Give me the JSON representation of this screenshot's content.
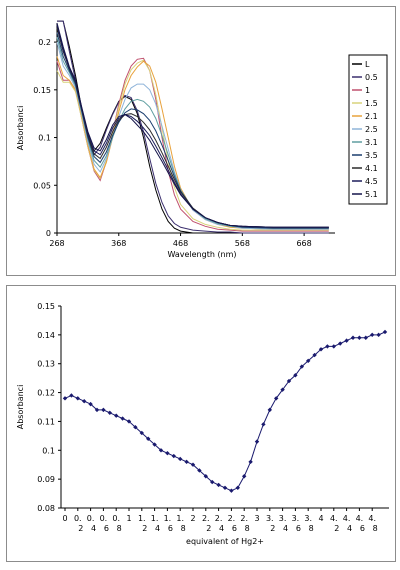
{
  "chart_data": [
    {
      "type": "line",
      "xlabel": "Wavelength (nm)",
      "ylabel": "Absorbanci",
      "xlim": [
        268,
        718
      ],
      "ylim": [
        0,
        0.22
      ],
      "x_ticks": [
        268,
        368,
        468,
        568,
        668
      ],
      "y_ticks": [
        0,
        0.05,
        0.1,
        0.15,
        0.2
      ],
      "y_tick_labels": [
        "0",
        "0.05",
        "0.1",
        "0.15",
        "0.2"
      ],
      "legend": "right",
      "series": [
        {
          "name": "L",
          "color": "#000000",
          "x": [
            268,
            278,
            288,
            298,
            308,
            318,
            328,
            338,
            348,
            358,
            368,
            378,
            388,
            398,
            408,
            418,
            428,
            438,
            448,
            458,
            468,
            488,
            508,
            528,
            548,
            568,
            618,
            668,
            708
          ],
          "y": [
            0.222,
            0.222,
            0.195,
            0.165,
            0.13,
            0.1,
            0.086,
            0.094,
            0.11,
            0.125,
            0.138,
            0.143,
            0.14,
            0.125,
            0.1,
            0.07,
            0.045,
            0.025,
            0.012,
            0.005,
            0.002,
            0,
            0,
            0,
            0,
            0,
            0,
            0,
            0
          ]
        },
        {
          "name": "0.5",
          "color": "#3b2f6e",
          "x": [
            268,
            278,
            288,
            298,
            308,
            318,
            328,
            338,
            348,
            358,
            368,
            378,
            388,
            398,
            408,
            418,
            428,
            438,
            448,
            458,
            468,
            488,
            508,
            528,
            548,
            568,
            618,
            668,
            708
          ],
          "y": [
            0.222,
            0.222,
            0.19,
            0.16,
            0.125,
            0.095,
            0.082,
            0.09,
            0.108,
            0.124,
            0.137,
            0.144,
            0.142,
            0.128,
            0.106,
            0.078,
            0.052,
            0.032,
            0.018,
            0.01,
            0.006,
            0.003,
            0.002,
            0.001,
            0.001,
            0,
            0,
            0,
            0
          ]
        },
        {
          "name": "1",
          "color": "#c0506e",
          "x": [
            268,
            278,
            288,
            298,
            308,
            318,
            328,
            338,
            348,
            358,
            368,
            378,
            388,
            398,
            408,
            418,
            428,
            438,
            448,
            458,
            468,
            488,
            508,
            528,
            548,
            568,
            618,
            668,
            708
          ],
          "y": [
            0.18,
            0.16,
            0.16,
            0.15,
            0.12,
            0.09,
            0.065,
            0.055,
            0.075,
            0.105,
            0.135,
            0.16,
            0.175,
            0.182,
            0.183,
            0.17,
            0.14,
            0.1,
            0.065,
            0.04,
            0.025,
            0.012,
            0.007,
            0.004,
            0.003,
            0.002,
            0.002,
            0.002,
            0.002
          ]
        },
        {
          "name": "1.5",
          "color": "#d9d27a",
          "x": [
            268,
            278,
            288,
            298,
            308,
            318,
            328,
            338,
            348,
            358,
            368,
            378,
            388,
            398,
            408,
            418,
            428,
            438,
            448,
            458,
            468,
            488,
            508,
            528,
            548,
            568,
            618,
            668,
            708
          ],
          "y": [
            0.17,
            0.158,
            0.158,
            0.148,
            0.12,
            0.09,
            0.066,
            0.057,
            0.076,
            0.104,
            0.132,
            0.156,
            0.171,
            0.178,
            0.181,
            0.17,
            0.145,
            0.11,
            0.075,
            0.048,
            0.03,
            0.015,
            0.009,
            0.006,
            0.004,
            0.003,
            0.003,
            0.003,
            0.003
          ]
        },
        {
          "name": "2.1",
          "color": "#e8a23c",
          "x": [
            268,
            278,
            288,
            298,
            308,
            318,
            328,
            338,
            348,
            358,
            368,
            378,
            388,
            398,
            408,
            418,
            428,
            438,
            448,
            458,
            468,
            488,
            508,
            528,
            548,
            568,
            618,
            668,
            708
          ],
          "y": [
            0.185,
            0.165,
            0.16,
            0.15,
            0.123,
            0.092,
            0.067,
            0.058,
            0.074,
            0.1,
            0.127,
            0.15,
            0.165,
            0.174,
            0.18,
            0.175,
            0.158,
            0.13,
            0.1,
            0.07,
            0.047,
            0.024,
            0.014,
            0.009,
            0.006,
            0.005,
            0.004,
            0.004,
            0.004
          ]
        },
        {
          "name": "2.5",
          "color": "#8fb4d9",
          "x": [
            268,
            278,
            288,
            298,
            308,
            318,
            328,
            338,
            348,
            358,
            368,
            378,
            388,
            398,
            408,
            418,
            428,
            438,
            448,
            458,
            468,
            488,
            508,
            528,
            548,
            568,
            618,
            668,
            708
          ],
          "y": [
            0.2,
            0.175,
            0.165,
            0.152,
            0.125,
            0.095,
            0.072,
            0.064,
            0.078,
            0.1,
            0.122,
            0.14,
            0.152,
            0.156,
            0.156,
            0.15,
            0.135,
            0.112,
            0.088,
            0.064,
            0.045,
            0.024,
            0.014,
            0.009,
            0.007,
            0.005,
            0.004,
            0.004,
            0.004
          ]
        },
        {
          "name": "3.1",
          "color": "#5f9ea0",
          "x": [
            268,
            278,
            288,
            298,
            308,
            318,
            328,
            338,
            348,
            358,
            368,
            378,
            388,
            398,
            408,
            418,
            428,
            438,
            448,
            458,
            468,
            488,
            508,
            528,
            548,
            568,
            618,
            668,
            708
          ],
          "y": [
            0.205,
            0.18,
            0.168,
            0.154,
            0.127,
            0.098,
            0.076,
            0.069,
            0.081,
            0.1,
            0.117,
            0.13,
            0.138,
            0.14,
            0.138,
            0.132,
            0.12,
            0.102,
            0.082,
            0.062,
            0.045,
            0.025,
            0.015,
            0.01,
            0.007,
            0.006,
            0.005,
            0.005,
            0.005
          ]
        },
        {
          "name": "3.5",
          "color": "#1a3d6e",
          "x": [
            268,
            278,
            288,
            298,
            308,
            318,
            328,
            338,
            348,
            358,
            368,
            378,
            388,
            398,
            408,
            418,
            428,
            438,
            448,
            458,
            468,
            488,
            508,
            528,
            548,
            568,
            618,
            668,
            708
          ],
          "y": [
            0.21,
            0.185,
            0.17,
            0.156,
            0.128,
            0.1,
            0.08,
            0.074,
            0.085,
            0.102,
            0.116,
            0.126,
            0.13,
            0.129,
            0.125,
            0.118,
            0.107,
            0.092,
            0.076,
            0.059,
            0.044,
            0.026,
            0.016,
            0.011,
            0.008,
            0.006,
            0.005,
            0.005,
            0.005
          ]
        },
        {
          "name": "4.1",
          "color": "#2a2a2a",
          "x": [
            268,
            278,
            288,
            298,
            308,
            318,
            328,
            338,
            348,
            358,
            368,
            378,
            388,
            398,
            408,
            418,
            428,
            438,
            448,
            458,
            468,
            488,
            508,
            528,
            548,
            568,
            618,
            668,
            708
          ],
          "y": [
            0.215,
            0.19,
            0.172,
            0.158,
            0.13,
            0.102,
            0.083,
            0.078,
            0.09,
            0.106,
            0.118,
            0.124,
            0.125,
            0.122,
            0.116,
            0.108,
            0.097,
            0.084,
            0.07,
            0.056,
            0.043,
            0.026,
            0.016,
            0.011,
            0.008,
            0.007,
            0.006,
            0.006,
            0.006
          ]
        },
        {
          "name": "4.5",
          "color": "#1c1c5a",
          "x": [
            268,
            278,
            288,
            298,
            308,
            318,
            328,
            338,
            348,
            358,
            368,
            378,
            388,
            398,
            408,
            418,
            428,
            438,
            448,
            458,
            468,
            488,
            508,
            528,
            548,
            568,
            618,
            668,
            708
          ],
          "y": [
            0.218,
            0.192,
            0.173,
            0.159,
            0.131,
            0.104,
            0.086,
            0.082,
            0.094,
            0.11,
            0.12,
            0.124,
            0.122,
            0.117,
            0.11,
            0.102,
            0.091,
            0.079,
            0.066,
            0.053,
            0.041,
            0.025,
            0.016,
            0.011,
            0.008,
            0.007,
            0.006,
            0.006,
            0.006
          ]
        },
        {
          "name": "5.1",
          "color": "#14144a",
          "x": [
            268,
            278,
            288,
            298,
            308,
            318,
            328,
            338,
            348,
            358,
            368,
            378,
            388,
            398,
            408,
            418,
            428,
            438,
            448,
            458,
            468,
            488,
            508,
            528,
            548,
            568,
            618,
            668,
            708
          ],
          "y": [
            0.22,
            0.195,
            0.174,
            0.16,
            0.132,
            0.106,
            0.089,
            0.086,
            0.098,
            0.113,
            0.122,
            0.124,
            0.12,
            0.113,
            0.106,
            0.097,
            0.086,
            0.075,
            0.063,
            0.051,
            0.04,
            0.025,
            0.016,
            0.011,
            0.008,
            0.007,
            0.006,
            0.006,
            0.006
          ]
        }
      ]
    },
    {
      "type": "line",
      "xlabel": "equivalent of Hg2+",
      "ylabel": "Absorbanci",
      "ylim": [
        0.08,
        0.15
      ],
      "y_ticks": [
        0.08,
        0.09,
        0.1,
        0.11,
        0.12,
        0.13,
        0.14,
        0.15
      ],
      "y_tick_labels": [
        "0.08",
        "0.09",
        "0.1",
        "0.11",
        "0.12",
        "0.13",
        "0.14",
        "0.15"
      ],
      "x_tick_labels": [
        [
          "0",
          ""
        ],
        [
          "0.",
          "2"
        ],
        [
          "0.",
          "4"
        ],
        [
          "0.",
          "6"
        ],
        [
          "0.",
          "8"
        ],
        [
          "1",
          ""
        ],
        [
          "1.",
          "2"
        ],
        [
          "1.",
          "4"
        ],
        [
          "1.",
          "6"
        ],
        [
          "1.",
          "8"
        ],
        [
          "2",
          ""
        ],
        [
          "2.",
          "2"
        ],
        [
          "2.",
          "4"
        ],
        [
          "2.",
          "6"
        ],
        [
          "2.",
          "8"
        ],
        [
          "3",
          ""
        ],
        [
          "3.",
          "2"
        ],
        [
          "3.",
          "4"
        ],
        [
          "3.",
          "6"
        ],
        [
          "3.",
          "8"
        ],
        [
          "4",
          ""
        ],
        [
          "4.",
          "2"
        ],
        [
          "4.",
          "4"
        ],
        [
          "4.",
          "6"
        ],
        [
          "4.",
          "8"
        ]
      ],
      "grid": false,
      "series": [
        {
          "color": "#1a1a6e",
          "x": [
            0,
            0.1,
            0.2,
            0.3,
            0.4,
            0.5,
            0.6,
            0.7,
            0.8,
            0.9,
            1.0,
            1.1,
            1.2,
            1.3,
            1.4,
            1.5,
            1.6,
            1.7,
            1.8,
            1.9,
            2.0,
            2.1,
            2.2,
            2.3,
            2.4,
            2.5,
            2.6,
            2.7,
            2.8,
            2.9,
            3.0,
            3.1,
            3.2,
            3.3,
            3.4,
            3.5,
            3.6,
            3.7,
            3.8,
            3.9,
            4.0,
            4.1,
            4.2,
            4.3,
            4.4,
            4.5,
            4.6,
            4.7,
            4.8,
            4.9,
            5.0
          ],
          "y": [
            0.118,
            0.119,
            0.118,
            0.117,
            0.116,
            0.114,
            0.114,
            0.113,
            0.112,
            0.111,
            0.11,
            0.108,
            0.106,
            0.104,
            0.102,
            0.1,
            0.099,
            0.098,
            0.097,
            0.096,
            0.095,
            0.093,
            0.091,
            0.089,
            0.088,
            0.087,
            0.086,
            0.087,
            0.091,
            0.096,
            0.103,
            0.109,
            0.114,
            0.118,
            0.121,
            0.124,
            0.126,
            0.129,
            0.131,
            0.133,
            0.135,
            0.136,
            0.136,
            0.137,
            0.138,
            0.139,
            0.139,
            0.139,
            0.14,
            0.14,
            0.141
          ]
        }
      ]
    }
  ]
}
